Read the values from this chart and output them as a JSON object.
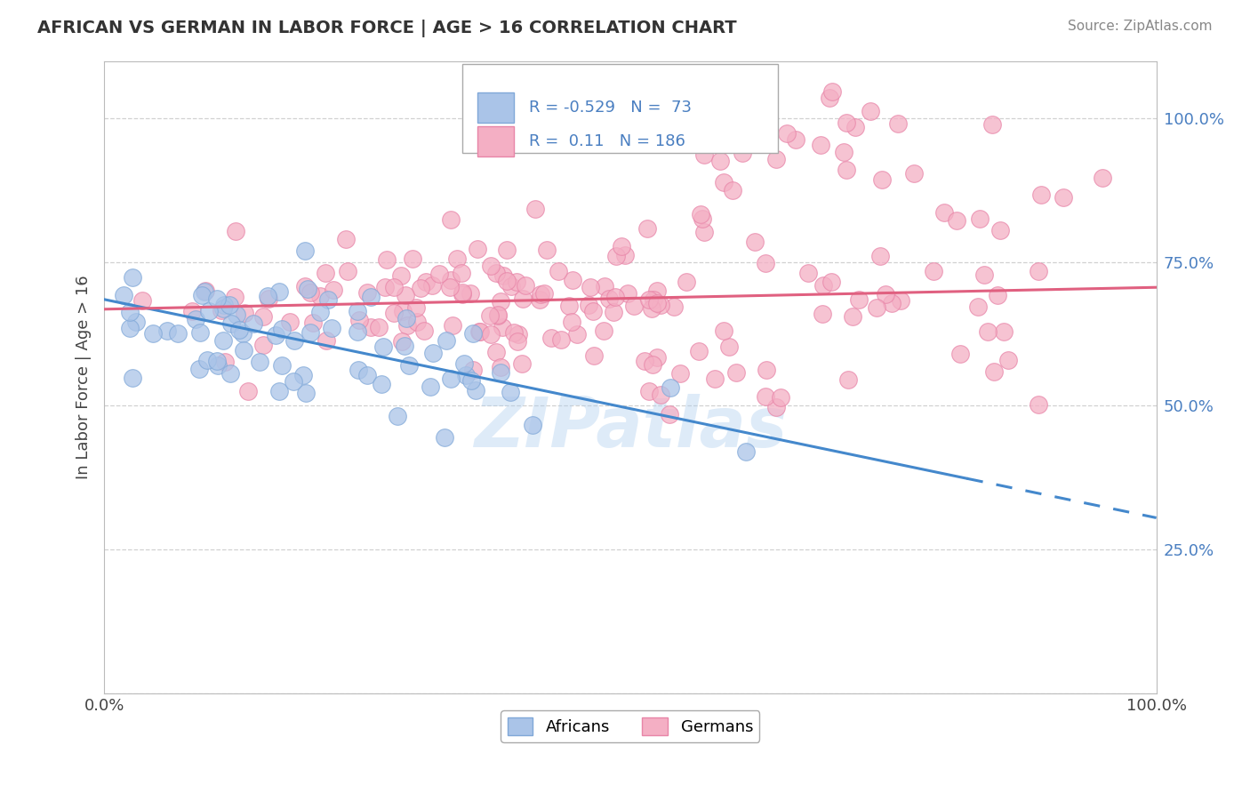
{
  "title": "AFRICAN VS GERMAN IN LABOR FORCE | AGE > 16 CORRELATION CHART",
  "source": "Source: ZipAtlas.com",
  "ylabel": "In Labor Force | Age > 16",
  "xlim": [
    0.0,
    1.0
  ],
  "ylim": [
    0.0,
    1.1
  ],
  "african_color": "#aac4e8",
  "german_color": "#f4afc4",
  "african_edge": "#80a8d8",
  "german_edge": "#e885a8",
  "trend_african_color": "#4488cc",
  "trend_german_color": "#e06080",
  "R_african": -0.529,
  "N_african": 73,
  "R_german": 0.11,
  "N_german": 186,
  "background_color": "#ffffff",
  "grid_color": "#cccccc",
  "af_intercept": 0.685,
  "af_slope": -0.38,
  "gm_intercept": 0.668,
  "gm_slope": 0.038
}
